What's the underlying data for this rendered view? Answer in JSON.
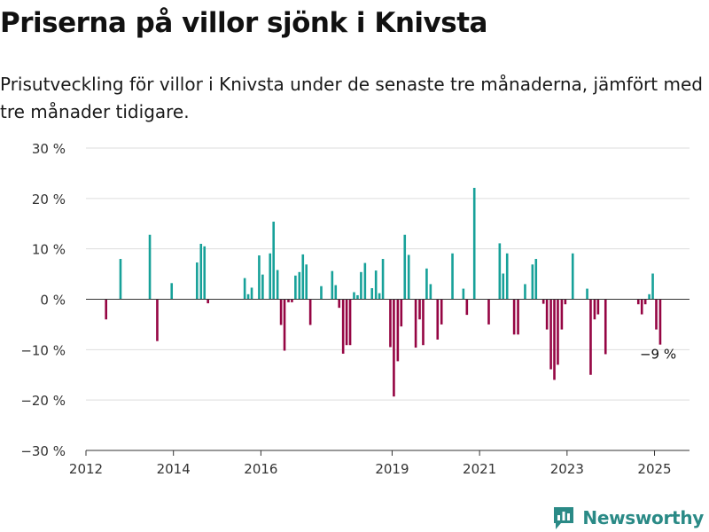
{
  "title": "Priserna på villor sjönk i Knivsta",
  "subtitle": "Prisutveckling för villor i Knivsta under de senaste tre månaderna, jämfört med tre månader tidigare.",
  "brand": {
    "name": "Newsworthy",
    "icon": "bar-chart-logo-icon"
  },
  "colors": {
    "positive": "#17a199",
    "negative": "#950543",
    "grid": "#dddddd",
    "text": "#333333"
  },
  "chart_data": {
    "type": "bar",
    "ylim": [
      -30,
      30
    ],
    "y_ticks": [
      30,
      20,
      10,
      0,
      -10,
      -20,
      -30
    ],
    "y_tick_labels": [
      "30 %",
      "20 %",
      "10 %",
      "0 %",
      "−10 %",
      "−20 %",
      "−30 %"
    ],
    "x_ticks": [
      2012,
      2014,
      2016,
      2019,
      2021,
      2023,
      2025
    ],
    "x_tick_labels": [
      "2012",
      "2014",
      "2016",
      "2019",
      "2021",
      "2023",
      "2025"
    ],
    "x_range": [
      2012.0,
      2025.8
    ],
    "xlabel": "",
    "ylabel": "",
    "grid": true,
    "annotation": {
      "text": "−9 %",
      "x": 2025.0,
      "y": -9
    },
    "points": [
      {
        "x": 2012.46,
        "y": -4
      },
      {
        "x": 2012.79,
        "y": 8
      },
      {
        "x": 2013.46,
        "y": 12.8
      },
      {
        "x": 2013.63,
        "y": -8.3
      },
      {
        "x": 2013.96,
        "y": 3.2
      },
      {
        "x": 2014.54,
        "y": 7.3
      },
      {
        "x": 2014.63,
        "y": 11
      },
      {
        "x": 2014.71,
        "y": 10.5
      },
      {
        "x": 2014.79,
        "y": -0.8
      },
      {
        "x": 2015.63,
        "y": 4.2
      },
      {
        "x": 2015.71,
        "y": 1
      },
      {
        "x": 2015.79,
        "y": 2.3
      },
      {
        "x": 2015.96,
        "y": 8.7
      },
      {
        "x": 2016.04,
        "y": 4.9
      },
      {
        "x": 2016.21,
        "y": 9.1
      },
      {
        "x": 2016.29,
        "y": 15.4
      },
      {
        "x": 2016.38,
        "y": 5.8
      },
      {
        "x": 2016.46,
        "y": -5.1
      },
      {
        "x": 2016.54,
        "y": -10.2
      },
      {
        "x": 2016.63,
        "y": -0.6
      },
      {
        "x": 2016.71,
        "y": -0.6
      },
      {
        "x": 2016.79,
        "y": 4.7
      },
      {
        "x": 2016.88,
        "y": 5.4
      },
      {
        "x": 2016.96,
        "y": 8.9
      },
      {
        "x": 2017.04,
        "y": 6.9
      },
      {
        "x": 2017.13,
        "y": -5.1
      },
      {
        "x": 2017.38,
        "y": 2.6
      },
      {
        "x": 2017.63,
        "y": 5.6
      },
      {
        "x": 2017.71,
        "y": 2.8
      },
      {
        "x": 2017.79,
        "y": -1.7
      },
      {
        "x": 2017.88,
        "y": -10.8
      },
      {
        "x": 2017.96,
        "y": -9.1
      },
      {
        "x": 2018.04,
        "y": -9.1
      },
      {
        "x": 2018.13,
        "y": 1.4
      },
      {
        "x": 2018.21,
        "y": 0.8
      },
      {
        "x": 2018.29,
        "y": 5.4
      },
      {
        "x": 2018.38,
        "y": 7.2
      },
      {
        "x": 2018.54,
        "y": 2.2
      },
      {
        "x": 2018.63,
        "y": 5.7
      },
      {
        "x": 2018.71,
        "y": 1.2
      },
      {
        "x": 2018.79,
        "y": 8
      },
      {
        "x": 2018.96,
        "y": -9.5
      },
      {
        "x": 2019.04,
        "y": -19.3
      },
      {
        "x": 2019.13,
        "y": -12.3
      },
      {
        "x": 2019.21,
        "y": -5.4
      },
      {
        "x": 2019.29,
        "y": 12.8
      },
      {
        "x": 2019.38,
        "y": 8.8
      },
      {
        "x": 2019.54,
        "y": -9.6
      },
      {
        "x": 2019.63,
        "y": -4
      },
      {
        "x": 2019.71,
        "y": -9.1
      },
      {
        "x": 2019.79,
        "y": 6.1
      },
      {
        "x": 2019.88,
        "y": 3
      },
      {
        "x": 2020.04,
        "y": -8
      },
      {
        "x": 2020.13,
        "y": -5
      },
      {
        "x": 2020.38,
        "y": 9.1
      },
      {
        "x": 2020.63,
        "y": 2.1
      },
      {
        "x": 2020.71,
        "y": -3.1
      },
      {
        "x": 2020.88,
        "y": 22.1
      },
      {
        "x": 2021.21,
        "y": -5
      },
      {
        "x": 2021.46,
        "y": 11.1
      },
      {
        "x": 2021.54,
        "y": 5.1
      },
      {
        "x": 2021.63,
        "y": 9.1
      },
      {
        "x": 2021.79,
        "y": -7
      },
      {
        "x": 2021.88,
        "y": -7
      },
      {
        "x": 2022.04,
        "y": 3
      },
      {
        "x": 2022.21,
        "y": 6.9
      },
      {
        "x": 2022.29,
        "y": 8
      },
      {
        "x": 2022.46,
        "y": -0.9
      },
      {
        "x": 2022.54,
        "y": -6
      },
      {
        "x": 2022.63,
        "y": -13.9
      },
      {
        "x": 2022.71,
        "y": -16
      },
      {
        "x": 2022.79,
        "y": -13
      },
      {
        "x": 2022.88,
        "y": -6
      },
      {
        "x": 2022.96,
        "y": -1
      },
      {
        "x": 2023.13,
        "y": 9.1
      },
      {
        "x": 2023.46,
        "y": 2.1
      },
      {
        "x": 2023.54,
        "y": -15
      },
      {
        "x": 2023.63,
        "y": -4
      },
      {
        "x": 2023.71,
        "y": -3
      },
      {
        "x": 2023.88,
        "y": -10.9
      },
      {
        "x": 2024.63,
        "y": -1
      },
      {
        "x": 2024.71,
        "y": -3
      },
      {
        "x": 2024.79,
        "y": -1
      },
      {
        "x": 2024.88,
        "y": 1
      },
      {
        "x": 2024.96,
        "y": 5.1
      },
      {
        "x": 2025.04,
        "y": -6
      },
      {
        "x": 2025.13,
        "y": -9
      }
    ]
  }
}
